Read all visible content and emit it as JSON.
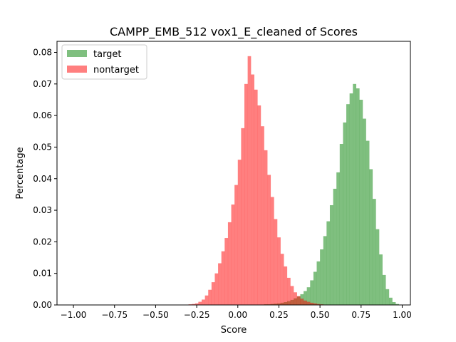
{
  "chart_data": {
    "type": "bar",
    "title": "CAMPP_EMB_512 vox1_E_cleaned of Scores",
    "xlabel": "Score",
    "ylabel": "Percentage",
    "xlim": [
      -1.1,
      1.05
    ],
    "ylim": [
      0,
      0.0835
    ],
    "xticks": [
      -1.0,
      -0.75,
      -0.5,
      -0.25,
      0.0,
      0.25,
      0.5,
      0.75,
      1.0
    ],
    "xtick_labels": [
      "−1.00",
      "−0.75",
      "−0.50",
      "−0.25",
      "0.00",
      "0.25",
      "0.50",
      "0.75",
      "1.00"
    ],
    "yticks": [
      0.0,
      0.01,
      0.02,
      0.03,
      0.04,
      0.05,
      0.06,
      0.07,
      0.08
    ],
    "ytick_labels": [
      "0.00",
      "0.01",
      "0.02",
      "0.03",
      "0.04",
      "0.05",
      "0.06",
      "0.07",
      "0.08"
    ],
    "bin_width": 0.02,
    "legend_position": "upper-left",
    "grid": false,
    "series": [
      {
        "name": "target",
        "color": "#008000",
        "alpha": 0.5,
        "bins_start": [
          0.14,
          0.16,
          0.18,
          0.2,
          0.22,
          0.24,
          0.26,
          0.28,
          0.3,
          0.32,
          0.34,
          0.36,
          0.38,
          0.4,
          0.42,
          0.44,
          0.46,
          0.48,
          0.5,
          0.52,
          0.54,
          0.56,
          0.58,
          0.6,
          0.62,
          0.64,
          0.66,
          0.68,
          0.7,
          0.72,
          0.74,
          0.76,
          0.78,
          0.8,
          0.82,
          0.84,
          0.86,
          0.88,
          0.9,
          0.92,
          0.94,
          0.96,
          0.98
        ],
        "values": [
          0.0001,
          0.0002,
          0.0002,
          0.0003,
          0.0004,
          0.0005,
          0.0007,
          0.0009,
          0.0012,
          0.0016,
          0.0021,
          0.0027,
          0.0034,
          0.0044,
          0.0056,
          0.0078,
          0.0105,
          0.0138,
          0.0176,
          0.0218,
          0.0265,
          0.0316,
          0.0368,
          0.042,
          0.051,
          0.0578,
          0.0636,
          0.067,
          0.07,
          0.0686,
          0.065,
          0.059,
          0.052,
          0.043,
          0.0336,
          0.024,
          0.016,
          0.0095,
          0.005,
          0.0023,
          0.0009,
          0.0003,
          0.0001
        ]
      },
      {
        "name": "nontarget",
        "color": "#ff0000",
        "alpha": 0.5,
        "bins_start": [
          -0.34,
          -0.32,
          -0.3,
          -0.28,
          -0.26,
          -0.24,
          -0.22,
          -0.2,
          -0.18,
          -0.16,
          -0.14,
          -0.12,
          -0.1,
          -0.08,
          -0.06,
          -0.04,
          -0.02,
          0.0,
          0.02,
          0.04,
          0.06,
          0.08,
          0.1,
          0.12,
          0.14,
          0.16,
          0.18,
          0.2,
          0.22,
          0.24,
          0.26,
          0.28,
          0.3,
          0.32,
          0.34,
          0.36,
          0.38,
          0.4,
          0.42,
          0.44,
          0.46,
          0.48,
          0.5,
          0.52,
          0.54
        ],
        "values": [
          0.0001,
          0.0001,
          0.0002,
          0.0003,
          0.0005,
          0.001,
          0.0017,
          0.003,
          0.0048,
          0.0072,
          0.01,
          0.0132,
          0.017,
          0.0212,
          0.0262,
          0.0318,
          0.038,
          0.046,
          0.056,
          0.07,
          0.0788,
          0.073,
          0.0682,
          0.0632,
          0.0566,
          0.049,
          0.0412,
          0.0342,
          0.0272,
          0.0214,
          0.0162,
          0.0122,
          0.0086,
          0.006,
          0.004,
          0.0028,
          0.002,
          0.0014,
          0.001,
          0.0007,
          0.0005,
          0.0003,
          0.0002,
          0.0001,
          0.0001
        ]
      }
    ]
  }
}
